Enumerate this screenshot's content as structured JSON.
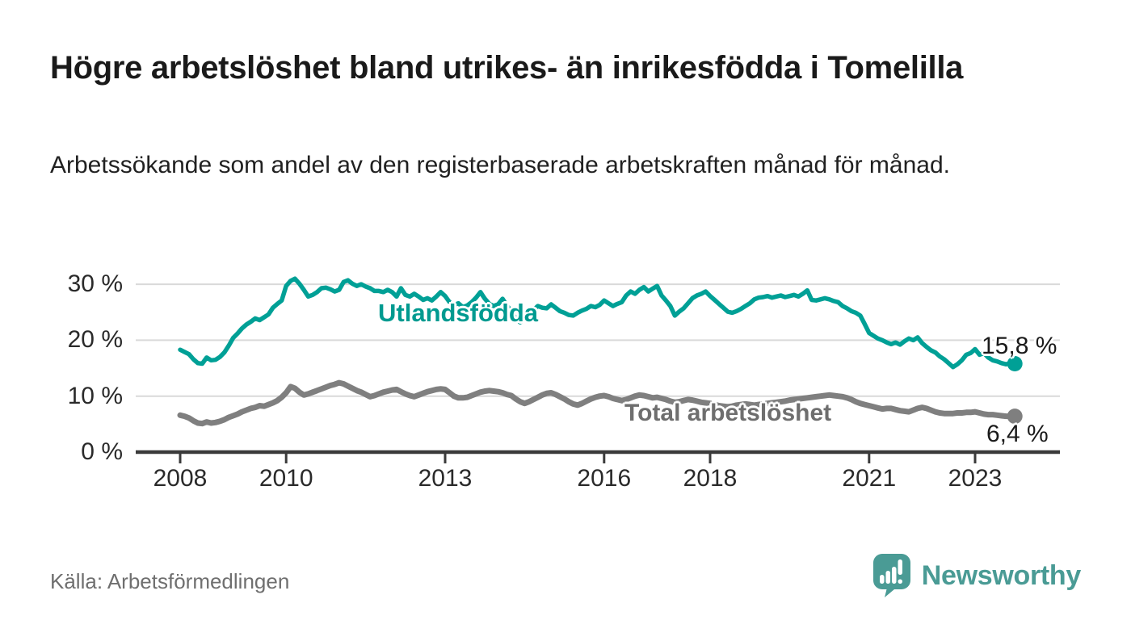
{
  "header": {
    "title": "Högre arbetslöshet bland utrikes- än inrikesfödda i Tomelilla",
    "subtitle": "Arbetssökande som andel av den registerbaserade arbetskraften månad för månad."
  },
  "footer": {
    "source": "Källa: Arbetsförmedlingen",
    "brand": {
      "name": "Newsworthy",
      "color": "#4A9B95",
      "icon": "speech-bubble-bar-chart-icon"
    }
  },
  "chart_data": {
    "type": "line",
    "x_unit": "month",
    "x_start": "2008-01",
    "x_end": "2023-10",
    "ylim": [
      0,
      33
    ],
    "unit": "%",
    "grid": "horizontal",
    "colors": {
      "grid": "#D9D9D9",
      "axis": "#3A3A3A",
      "tick_text": "#2A2A2A"
    },
    "y_ticks": [
      {
        "value": 0,
        "label": "0 %"
      },
      {
        "value": 10,
        "label": "10 %"
      },
      {
        "value": 20,
        "label": "20 %"
      },
      {
        "value": 30,
        "label": "30 %"
      }
    ],
    "x_ticks": [
      {
        "year": 2008,
        "label": "2008"
      },
      {
        "year": 2010,
        "label": "2010"
      },
      {
        "year": 2013,
        "label": "2013"
      },
      {
        "year": 2016,
        "label": "2016"
      },
      {
        "year": 2018,
        "label": "2018"
      },
      {
        "year": 2021,
        "label": "2021"
      },
      {
        "year": 2023,
        "label": "2023"
      }
    ],
    "series": [
      {
        "name": "Utlandsfödda",
        "color": "#00A096",
        "label_color": "#009A90",
        "end_label": "15,8 %",
        "last_value": 15.8,
        "values": [
          18.3,
          17.9,
          17.5,
          16.6,
          15.9,
          15.8,
          16.9,
          16.4,
          16.5,
          17.0,
          17.8,
          19.0,
          20.4,
          21.2,
          22.1,
          22.8,
          23.3,
          23.9,
          23.6,
          24.1,
          24.6,
          25.8,
          26.5,
          27.1,
          29.7,
          30.6,
          31.0,
          30.1,
          29.0,
          27.8,
          28.1,
          28.6,
          29.3,
          29.4,
          29.1,
          28.7,
          29.0,
          30.4,
          30.7,
          30.1,
          29.7,
          30.0,
          29.6,
          29.3,
          28.8,
          28.8,
          28.6,
          29.0,
          28.6,
          27.8,
          29.3,
          28.1,
          27.8,
          28.3,
          27.8,
          27.2,
          27.5,
          27.1,
          27.8,
          28.6,
          27.9,
          26.8,
          26.3,
          26.6,
          25.9,
          26.2,
          26.8,
          27.6,
          28.6,
          27.4,
          26.5,
          26.1,
          26.4,
          27.4,
          26.2,
          25.1,
          23.9,
          23.2,
          23.9,
          24.7,
          25.4,
          26.1,
          25.8,
          25.7,
          26.4,
          25.8,
          25.2,
          24.9,
          24.5,
          24.4,
          24.9,
          25.3,
          25.6,
          26.1,
          25.9,
          26.3,
          27.1,
          26.6,
          26.1,
          26.5,
          26.8,
          28.0,
          28.7,
          28.3,
          29.0,
          29.5,
          28.7,
          29.2,
          29.7,
          28.0,
          27.1,
          26.1,
          24.4,
          25.1,
          25.7,
          26.6,
          27.5,
          28.0,
          28.3,
          28.7,
          27.9,
          27.2,
          26.5,
          25.8,
          25.1,
          24.9,
          25.2,
          25.6,
          26.1,
          26.6,
          27.3,
          27.6,
          27.7,
          27.9,
          27.6,
          27.8,
          28.0,
          27.7,
          27.9,
          28.1,
          27.8,
          28.3,
          28.9,
          27.2,
          27.1,
          27.3,
          27.5,
          27.3,
          27.0,
          26.8,
          26.1,
          25.7,
          25.2,
          24.9,
          24.4,
          22.9,
          21.3,
          20.8,
          20.3,
          20.0,
          19.6,
          19.3,
          19.6,
          19.2,
          19.8,
          20.3,
          20.0,
          20.5,
          19.5,
          18.8,
          18.2,
          17.8,
          17.1,
          16.6,
          15.9,
          15.2,
          15.7,
          16.4,
          17.4,
          17.7,
          18.4,
          17.4,
          17.7,
          16.9,
          16.4,
          16.2,
          15.9,
          15.7,
          15.9,
          15.8
        ]
      },
      {
        "name": "Total arbetslöshet",
        "color": "#7F7F7F",
        "label_color": "#6E6E6E",
        "end_label": "6,4 %",
        "last_value": 6.4,
        "values": [
          6.6,
          6.4,
          6.1,
          5.6,
          5.2,
          5.1,
          5.4,
          5.2,
          5.3,
          5.5,
          5.8,
          6.2,
          6.5,
          6.8,
          7.2,
          7.5,
          7.8,
          8.0,
          8.3,
          8.2,
          8.5,
          8.8,
          9.2,
          9.8,
          10.6,
          11.7,
          11.4,
          10.7,
          10.2,
          10.4,
          10.7,
          11.0,
          11.3,
          11.6,
          11.9,
          12.1,
          12.4,
          12.2,
          11.8,
          11.4,
          11.0,
          10.7,
          10.3,
          9.9,
          10.1,
          10.4,
          10.7,
          10.9,
          11.1,
          11.2,
          10.8,
          10.4,
          10.1,
          9.9,
          10.2,
          10.5,
          10.8,
          11.0,
          11.2,
          11.3,
          11.2,
          10.6,
          10.0,
          9.7,
          9.7,
          9.8,
          10.1,
          10.4,
          10.7,
          10.9,
          11.0,
          10.9,
          10.8,
          10.6,
          10.3,
          10.1,
          9.5,
          9.0,
          8.7,
          9.0,
          9.4,
          9.8,
          10.2,
          10.5,
          10.6,
          10.3,
          9.9,
          9.5,
          9.0,
          8.6,
          8.4,
          8.7,
          9.1,
          9.5,
          9.8,
          10.0,
          10.1,
          9.9,
          9.6,
          9.4,
          9.2,
          9.4,
          9.7,
          10.0,
          10.2,
          10.1,
          9.9,
          9.7,
          9.8,
          9.6,
          9.4,
          9.1,
          8.9,
          9.0,
          9.2,
          9.4,
          9.3,
          9.1,
          8.9,
          8.8,
          8.7,
          8.5,
          8.3,
          8.2,
          8.1,
          8.2,
          8.4,
          8.5,
          8.6,
          8.5,
          8.4,
          8.5,
          8.6,
          8.7,
          8.8,
          8.9,
          9.0,
          9.1,
          9.3,
          9.4,
          9.5,
          9.6,
          9.7,
          9.8,
          9.9,
          10.0,
          10.1,
          10.2,
          10.1,
          10.0,
          9.9,
          9.7,
          9.4,
          9.0,
          8.7,
          8.5,
          8.3,
          8.1,
          7.9,
          7.7,
          7.8,
          7.8,
          7.6,
          7.4,
          7.3,
          7.2,
          7.5,
          7.8,
          8.0,
          7.8,
          7.5,
          7.2,
          7.0,
          6.9,
          6.9,
          6.9,
          7.0,
          7.0,
          7.1,
          7.1,
          7.2,
          7.0,
          6.8,
          6.7,
          6.7,
          6.6,
          6.5,
          6.4,
          6.4,
          6.4
        ]
      }
    ]
  }
}
